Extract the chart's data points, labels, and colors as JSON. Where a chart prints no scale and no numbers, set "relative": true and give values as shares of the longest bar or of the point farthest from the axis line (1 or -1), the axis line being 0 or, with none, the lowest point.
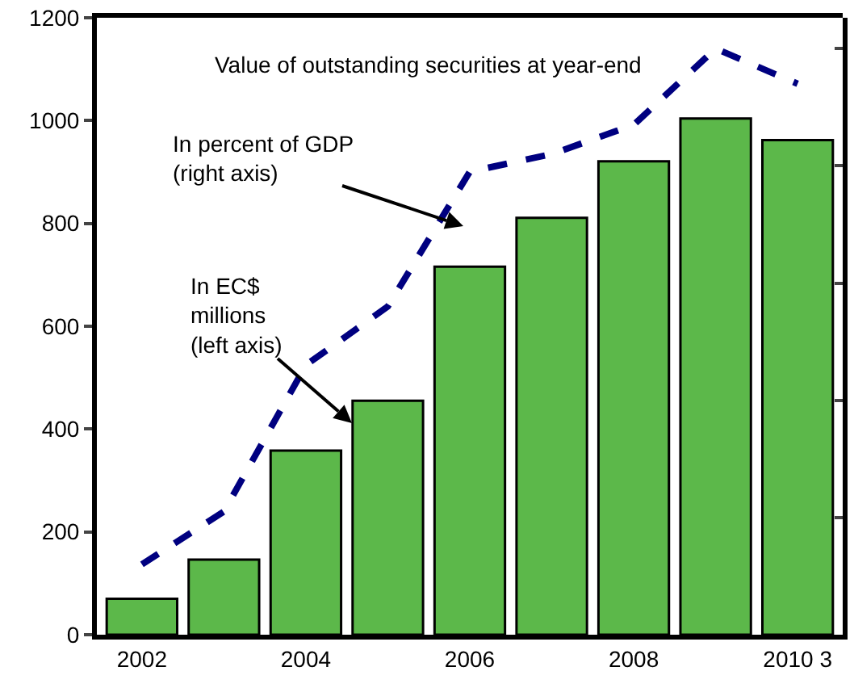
{
  "chart_data": [
    {
      "type": "bar",
      "title": "Value of outstanding securities at year-end",
      "categories": [
        "2002",
        null,
        "2004",
        null,
        "2006",
        null,
        "2008",
        null,
        "2010 3"
      ],
      "series": [
        {
          "color": "#5cb84a",
          "values": [
            70,
            146,
            358,
            455,
            716,
            811,
            921,
            1004,
            962
          ]
        }
      ],
      "ylim": [
        0,
        1200
      ],
      "yticks": [
        0,
        200,
        400,
        600,
        800,
        1000,
        1200
      ],
      "annotations": [
        "In percent of GDP\n(right axis)",
        "In EC$\nmillions\n(left axis)"
      ],
      "grid": false,
      "legend": false
    },
    {
      "type": "line",
      "relative": true,
      "tick_labels": false,
      "categories": [
        "2002",
        null,
        "2004",
        null,
        "2006",
        null,
        "2008",
        null,
        "2010 3"
      ],
      "series": [
        {
          "color": "#000080",
          "values": [
            0.12,
            0.21,
            0.46,
            0.56,
            0.79,
            0.82,
            0.87,
            1,
            0.94
          ]
        }
      ],
      "line_style": "dashed",
      "marker": "none",
      "grid": false,
      "legend": false
    }
  ]
}
